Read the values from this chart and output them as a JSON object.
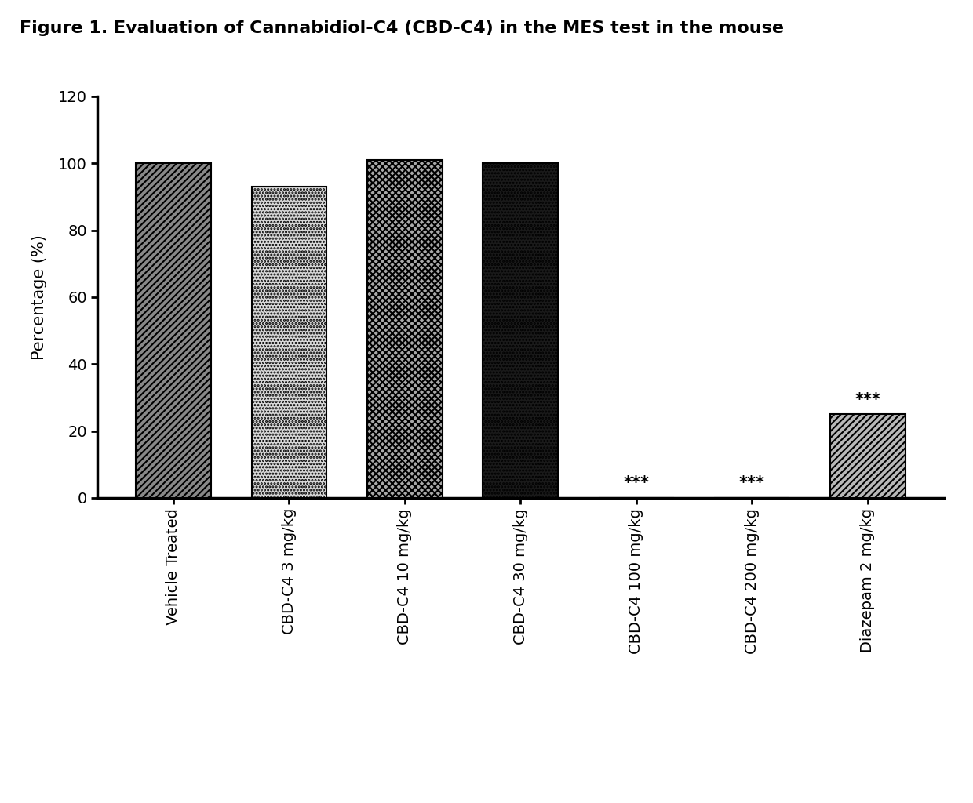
{
  "title": "Figure 1. Evaluation of Cannabidiol-C4 (CBD-C4) in the MES test in the mouse",
  "categories": [
    "Vehicle Treated",
    "CBD-C4 3 mg/kg",
    "CBD-C4 10 mg/kg",
    "CBD-C4 30 mg/kg",
    "CBD-C4 100 mg/kg",
    "CBD-C4 200 mg/kg",
    "Diazepam 2 mg/kg"
  ],
  "values": [
    100,
    93,
    101,
    100,
    0,
    0,
    25
  ],
  "ylabel": "Percentage (%)",
  "ylim": [
    0,
    120
  ],
  "yticks": [
    0,
    20,
    40,
    60,
    80,
    100,
    120
  ],
  "significance": [
    false,
    false,
    false,
    false,
    true,
    true,
    true
  ],
  "sig_label": "***",
  "bar_width": 0.65,
  "background_color": "#ffffff",
  "bar_facecolors": [
    "#888888",
    "#d8d8d8",
    "#a8a8a8",
    "#1a1a1a",
    "#ffffff",
    "#ffffff",
    "#b8b8b8"
  ],
  "bar_edgecolors": [
    "#000000",
    "#000000",
    "#000000",
    "#000000",
    "#000000",
    "#000000",
    "#000000"
  ],
  "title_fontsize": 16,
  "axis_label_fontsize": 15,
  "tick_fontsize": 14,
  "sig_fontsize": 15
}
